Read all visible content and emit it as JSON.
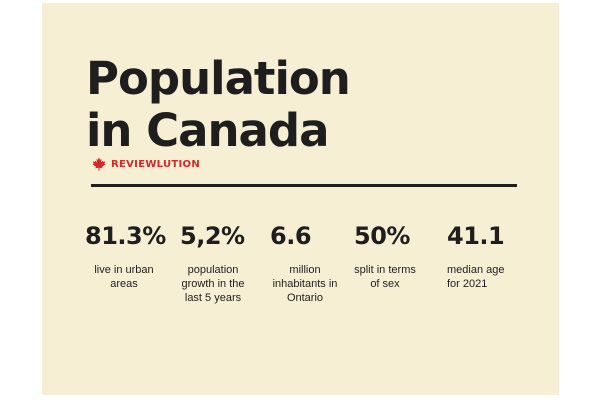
{
  "title_line1": "Population",
  "title_line2": "in Canada",
  "brand": {
    "name": "REVIEWLUTION",
    "icon": "maple-leaf-icon",
    "color": "#d6262a"
  },
  "colors": {
    "background": "#f7efd4",
    "text": "#1e1e1e"
  },
  "stats": [
    {
      "value": "81.3%",
      "label": "live in urban areas"
    },
    {
      "value": "5,2%",
      "label": "population growth in the last 5 years"
    },
    {
      "value": "6.6",
      "label": "million inhabitants in Ontario"
    },
    {
      "value": "50%",
      "label": "split in terms of sex"
    },
    {
      "value": "41.1",
      "label": "median age for 2021"
    }
  ]
}
